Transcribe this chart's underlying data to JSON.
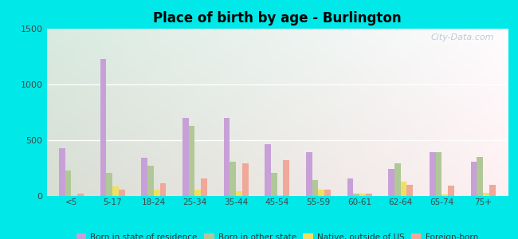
{
  "title": "Place of birth by age - Burlington",
  "categories": [
    "<5",
    "5-17",
    "18-24",
    "25-34",
    "35-44",
    "45-54",
    "55-59",
    "60-61",
    "62-64",
    "65-74",
    "75+"
  ],
  "series": {
    "Born in state of residence": [
      430,
      1230,
      340,
      700,
      700,
      465,
      390,
      155,
      240,
      390,
      310
    ],
    "Born in other state": [
      230,
      205,
      270,
      630,
      310,
      210,
      140,
      25,
      295,
      390,
      350
    ],
    "Native, outside of US": [
      8,
      85,
      55,
      55,
      40,
      8,
      55,
      18,
      130,
      12,
      28
    ],
    "Foreign-born": [
      18,
      55,
      115,
      160,
      295,
      320,
      55,
      18,
      100,
      95,
      100
    ]
  },
  "colors": {
    "Born in state of residence": "#c8a0d8",
    "Born in other state": "#b0c898",
    "Native, outside of US": "#f0e060",
    "Foreign-born": "#f0a898"
  },
  "ylim": [
    0,
    1500
  ],
  "yticks": [
    0,
    500,
    1000,
    1500
  ],
  "background_color": "#00e8e8",
  "watermark": "City-Data.com"
}
